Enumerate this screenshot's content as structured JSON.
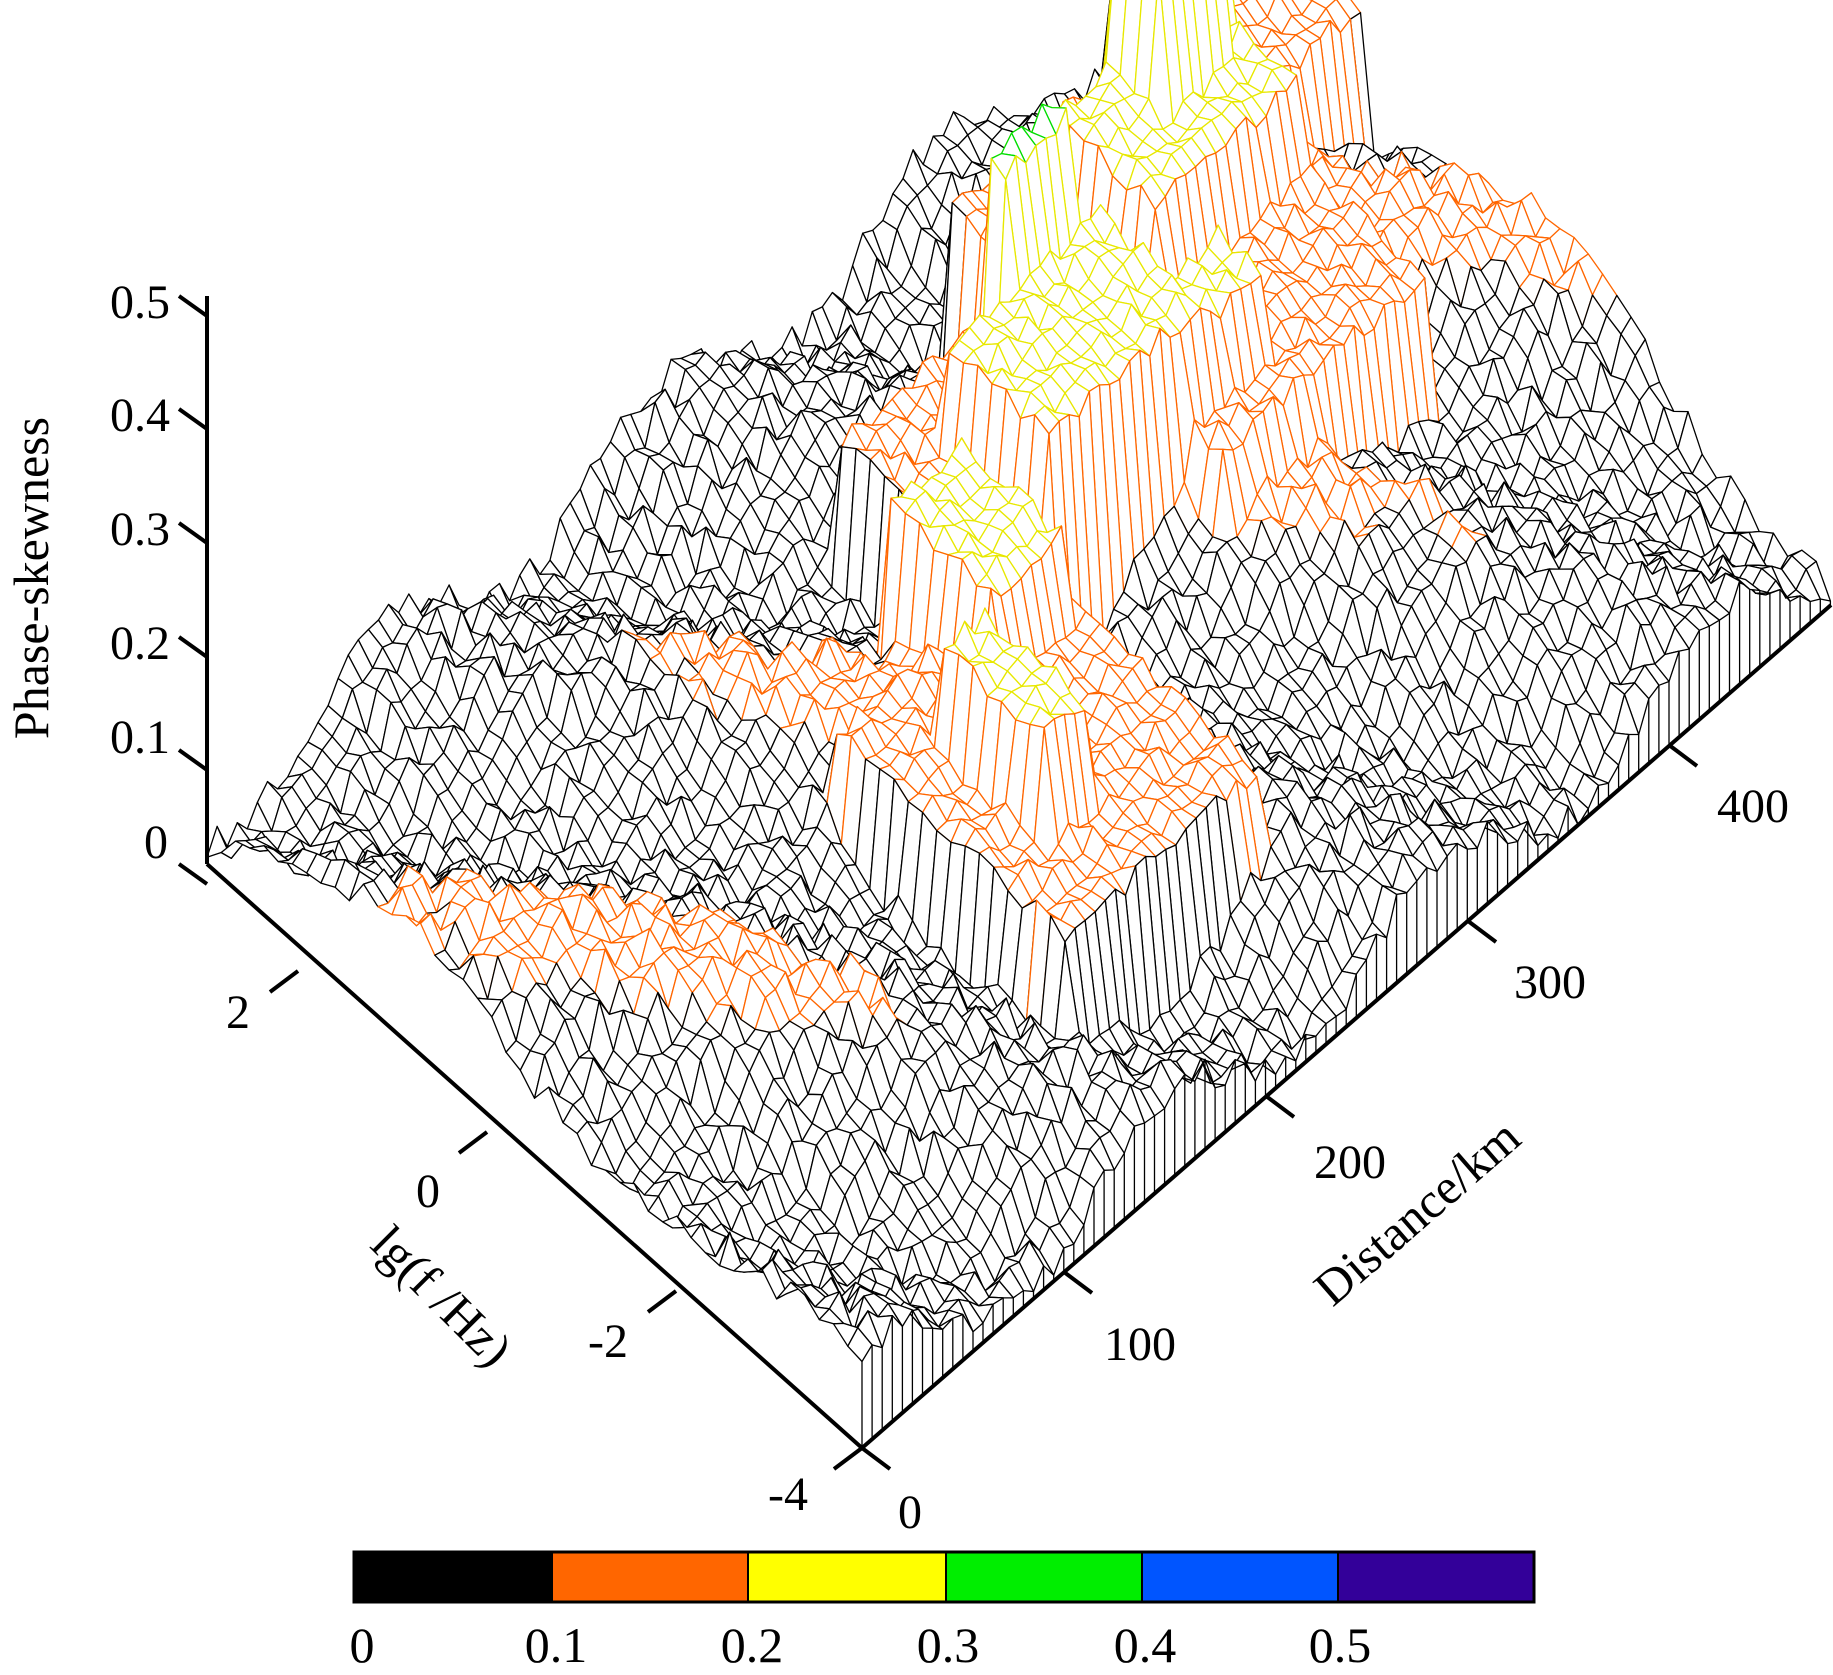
{
  "chart_data": {
    "type": "surface3d",
    "z_axis": {
      "label": "Phase-skewness",
      "ticks": [
        "0.5",
        "0.4",
        "0.3",
        "0.2",
        "0.1",
        "0"
      ],
      "range": [
        0,
        0.5
      ]
    },
    "frequency_axis": {
      "label": "lg(f /Hz)",
      "ticks": [
        "2",
        "0",
        "-2",
        "-4"
      ],
      "range": [
        -4,
        3
      ]
    },
    "distance_axis": {
      "label": "Distance/km",
      "ticks": [
        "0",
        "100",
        "200",
        "300",
        "400"
      ],
      "range": [
        0,
        480
      ]
    },
    "colorbar": {
      "labels": [
        "0",
        "0.1",
        "0.2",
        "0.3",
        "0.4",
        "0.5"
      ],
      "bins": [
        {
          "range": [
            0,
            0.1
          ],
          "color": "#000000"
        },
        {
          "range": [
            0.1,
            0.2
          ],
          "color": "#ff6600"
        },
        {
          "range": [
            0.2,
            0.3
          ],
          "color": "#ffff00"
        },
        {
          "range": [
            0.3,
            0.4
          ],
          "color": "#00ee00"
        },
        {
          "range": [
            0.4,
            0.5
          ],
          "color": "#0055ff"
        },
        {
          "range": [
            0.5,
            0.6
          ],
          "color": "#330099"
        }
      ]
    },
    "regions": [
      {
        "distance": [
          150,
          245
        ],
        "lgf": [
          -3.0,
          -0.5
        ],
        "level": 0.14,
        "color": "orange"
      },
      {
        "distance": [
          175,
          195
        ],
        "lgf": [
          -2.2,
          -1.0
        ],
        "level": 0.22,
        "color": "yellow"
      },
      {
        "distance": [
          205,
          240
        ],
        "lgf": [
          -1.0,
          0.2
        ],
        "level": 0.21,
        "color": "yellow"
      },
      {
        "distance": [
          230,
          330
        ],
        "lgf": [
          -0.5,
          1.2
        ],
        "level": 0.15,
        "color": "orange"
      },
      {
        "distance": [
          255,
          330
        ],
        "lgf": [
          -0.5,
          0.6
        ],
        "level": 0.24,
        "color": "yellow"
      },
      {
        "distance": [
          290,
          320
        ],
        "lgf": [
          0.6,
          1.0
        ],
        "level": 0.33,
        "color": "green"
      },
      {
        "distance": [
          300,
          360
        ],
        "lgf": [
          -0.6,
          0.0
        ],
        "level": 0.22,
        "color": "yellow"
      },
      {
        "distance": [
          320,
          420
        ],
        "lgf": [
          -1.0,
          2.0
        ],
        "level": 0.16,
        "color": "orange"
      },
      {
        "distance": [
          350,
          420
        ],
        "lgf": [
          0.3,
          1.5
        ],
        "level": 0.23,
        "color": "yellow"
      },
      {
        "distance": [
          380,
          410
        ],
        "lgf": [
          1.0,
          1.5
        ],
        "level": 0.34,
        "color": "green"
      },
      {
        "distance": [
          400,
          440
        ],
        "lgf": [
          1.6,
          2.0
        ],
        "level": 0.25,
        "color": "yellow"
      },
      {
        "distance": [
          420,
          480
        ],
        "lgf": [
          1.0,
          2.5
        ],
        "level": 0.16,
        "color": "orange"
      }
    ]
  }
}
